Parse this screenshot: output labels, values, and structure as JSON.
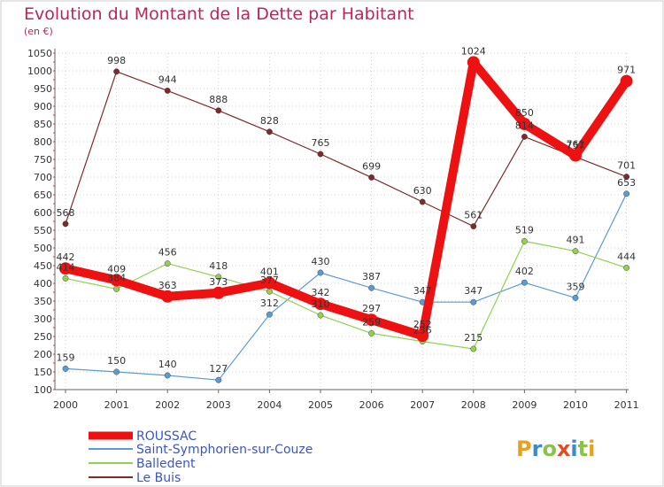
{
  "chart_data": {
    "type": "line",
    "title": "Evolution du Montant de la Dette par Habitant",
    "subtitle": "(en €)",
    "xlabel": "",
    "ylabel": "",
    "categories": [
      "2000",
      "2001",
      "2002",
      "2003",
      "2004",
      "2005",
      "2006",
      "2007",
      "2008",
      "2009",
      "2010",
      "2011"
    ],
    "ylim": [
      100,
      1050
    ],
    "yticks": [
      100,
      150,
      200,
      250,
      300,
      350,
      400,
      450,
      500,
      550,
      600,
      650,
      700,
      750,
      800,
      850,
      900,
      950,
      1000,
      1050
    ],
    "grid": "horizontal dashed",
    "series": [
      {
        "name": "ROUSSAC",
        "color": "#ee1111",
        "values": [
          442,
          409,
          363,
          373,
          401,
          342,
          297,
          252,
          1024,
          850,
          761,
          971
        ]
      },
      {
        "name": "Saint-Symphorien-sur-Couze",
        "color": "#5b9bd5",
        "values": [
          159,
          150,
          140,
          127,
          312,
          430,
          387,
          347,
          347,
          402,
          359,
          653
        ]
      },
      {
        "name": "Balledent",
        "color": "#92d050",
        "values": [
          414,
          384,
          456,
          418,
          377,
          310,
          259,
          236,
          215,
          519,
          491,
          444
        ]
      },
      {
        "name": "Le Buis",
        "color": "#7f2a2a",
        "values": [
          568,
          998,
          944,
          888,
          828,
          765,
          699,
          630,
          561,
          814,
          757,
          701
        ]
      }
    ],
    "legend_position": "bottom-left"
  },
  "logo": {
    "text": "Proxiti"
  }
}
